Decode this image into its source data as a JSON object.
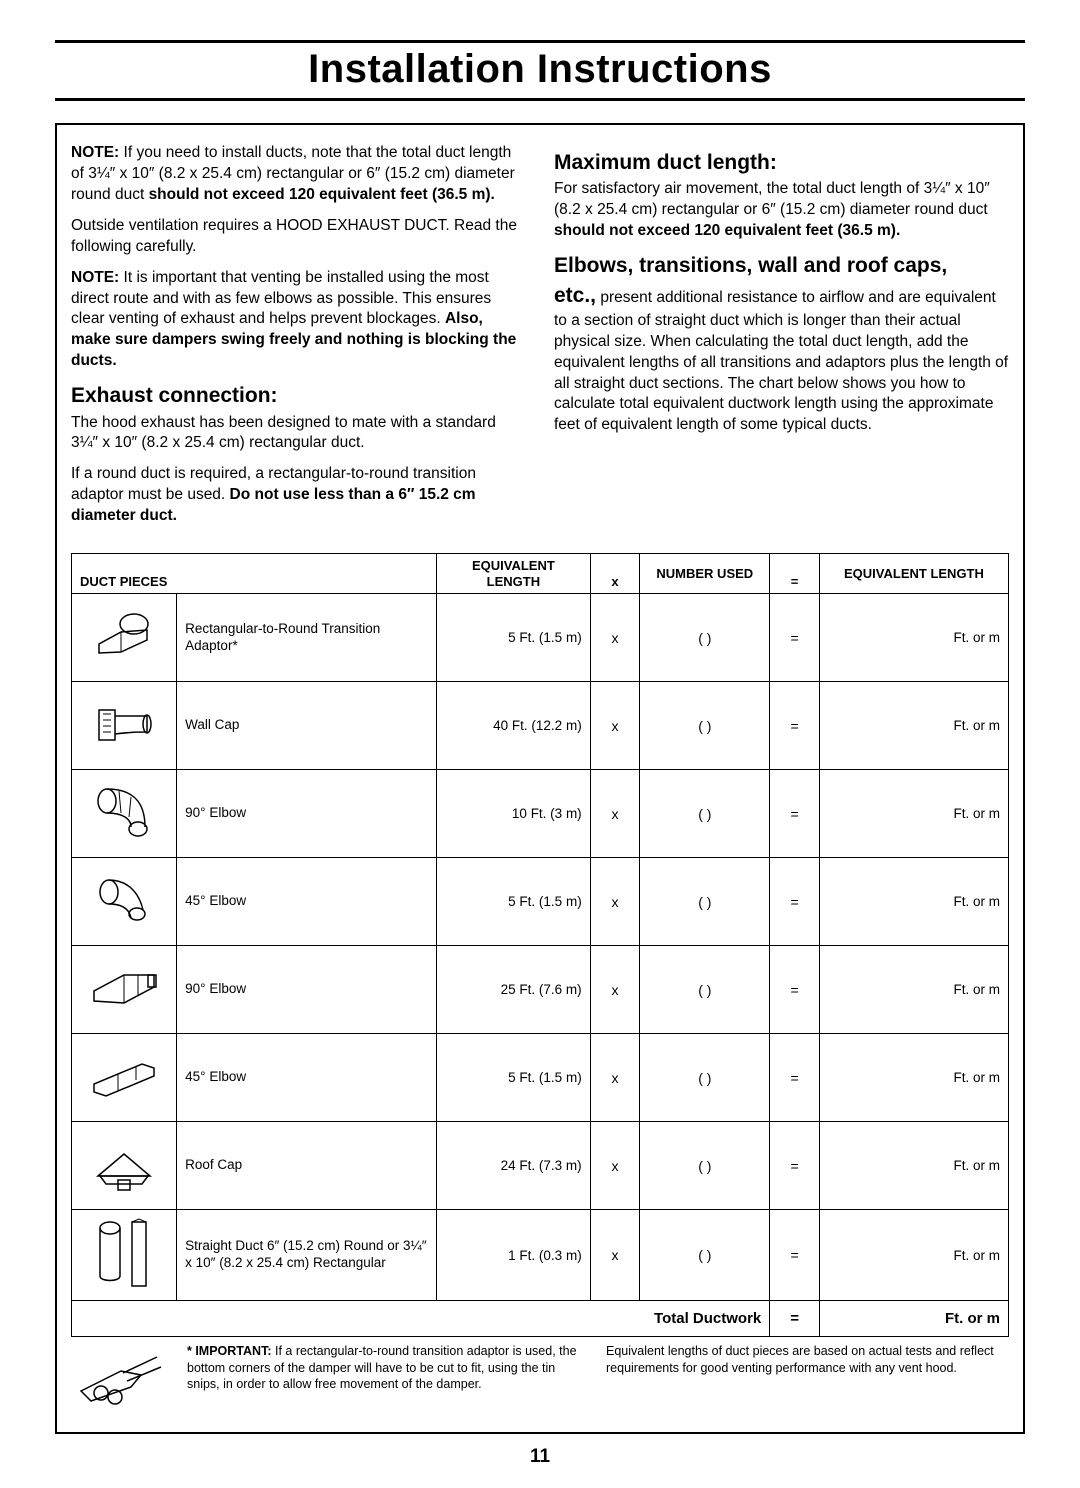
{
  "title": "Installation Instructions",
  "page_number": "11",
  "left_column": {
    "note1_label": "NOTE:",
    "note1_text": " If you need to install ducts, note that the total duct length of 3¼″ x 10″ (8.2 x 25.4 cm) rectangular or 6″ (15.2 cm) diameter round duct ",
    "note1_bold": "should not exceed 120 equivalent feet (36.5 m).",
    "para2": "Outside ventilation requires a HOOD EXHAUST DUCT. Read the following carefully.",
    "note2_label": "NOTE:",
    "note2_text": " It is important that venting be installed using the most direct route and with as few elbows as possible. This ensures clear venting of exhaust and helps prevent blockages. ",
    "note2_bold": "Also, make sure dampers swing freely and nothing is blocking the ducts.",
    "h_exhaust": "Exhaust connection:",
    "exhaust_p1": "The hood exhaust has been designed to mate with a standard 3¼″ x 10″ (8.2 x 25.4 cm) rectangular duct.",
    "exhaust_p2a": "If a round duct is required, a rectangular-to-round transition adaptor must be used. ",
    "exhaust_p2b": "Do not use less than a 6″ 15.2 cm diameter duct."
  },
  "right_column": {
    "h_max": "Maximum duct length:",
    "max_p1a": "For satisfactory air movement, the total duct length of 3¼″ x 10″ (8.2 x 25.4 cm) rectangular or 6″ (15.2 cm) diameter round duct ",
    "max_p1b": "should not exceed 120 equivalent feet (36.5 m).",
    "h_elbows": "Elbows, transitions, wall and roof caps,",
    "etc_label": "etc.,",
    "elbows_text": " present additional resistance to airflow and are equivalent to a section of straight duct which is longer than their actual physical size. When calculating the total duct length, add the equivalent lengths of all transitions and adaptors plus the length of all straight duct sections. The chart below shows you how to calculate total equivalent ductwork length using the approximate feet of equivalent length of some typical ducts."
  },
  "table": {
    "headers": {
      "duct_pieces": "DUCT PIECES",
      "eq_len": "EQUIVALENT LENGTH",
      "x": "x",
      "num_used": "NUMBER USED",
      "eq": "=",
      "eq_len2": "EQUIVALENT LENGTH"
    },
    "rows": [
      {
        "name": "Rectangular-to-Round Transition Adaptor*",
        "eq": "5 Ft. (1.5 m)"
      },
      {
        "name": "Wall Cap",
        "eq": "40 Ft. (12.2 m)"
      },
      {
        "name": "90° Elbow",
        "eq": "10 Ft. (3 m)"
      },
      {
        "name": "45° Elbow",
        "eq": "5 Ft. (1.5 m)"
      },
      {
        "name": "90° Elbow",
        "eq": "25 Ft. (7.6 m)"
      },
      {
        "name": "45° Elbow",
        "eq": "5 Ft. (1.5 m)"
      },
      {
        "name": "Roof Cap",
        "eq": "24 Ft. (7.3 m)"
      },
      {
        "name": "Straight Duct 6″ (15.2 cm) Round or 3¼″ x 10″ (8.2 x 25.4 cm) Rectangular",
        "eq": "1 Ft. (0.3 m)"
      }
    ],
    "op_x": "x",
    "paren": "(   )",
    "op_eq": "=",
    "result_unit": "Ft. or m",
    "total_label": "Total Ductwork",
    "total_eq": "=",
    "total_unit": "Ft. or m"
  },
  "footnotes": {
    "important_label": "* IMPORTANT:",
    "important_text": " If a rectangular-to-round transition adaptor is used, the bottom corners of the damper will have to be cut to fit, using the tin snips, in order to allow free movement of the damper.",
    "note2": "Equivalent lengths of duct pieces are based on actual tests and reflect requirements for good venting performance with any vent hood."
  },
  "icons": {
    "svgs": [
      "<svg class='icon-svg' width='70' height='60' viewBox='0 0 70 60'><ellipse cx='45' cy='16' rx='14' ry='10' fill='none' stroke='#000' stroke-width='1.5'/><path d='M10 45 L10 36 L32 24 L58 22 L58 32 L32 44 Z' fill='none' stroke='#000' stroke-width='1.5'/><path d='M32 24 L32 44' stroke='#000' stroke-width='1'/></svg>",
      "<svg class='icon-svg' width='70' height='60' viewBox='0 0 70 60'><rect x='10' y='14' width='16' height='30' fill='none' stroke='#000' stroke-width='1.5'/><path d='M26 20 C45 20 45 20 58 20 L58 36 C45 36 45 36 26 38' fill='none' stroke='#000' stroke-width='1.5'/><ellipse cx='58' cy='28' rx='4' ry='9' fill='none' stroke='#000' stroke-width='1.5'/><line x1='14' y1='18' x2='22' y2='18' stroke='#000'/><line x1='14' y1='24' x2='22' y2='24' stroke='#000'/><line x1='14' y1='30' x2='22' y2='30' stroke='#000'/><line x1='14' y1='36' x2='22' y2='36' stroke='#000'/></svg>",
      "<svg class='icon-svg' width='70' height='62' viewBox='0 0 70 62'><ellipse cx='18' cy='18' rx='9' ry='12' fill='none' stroke='#000' stroke-width='1.5'/><path d='M18 6 C45 6 56 20 56 44' fill='none' stroke='#000' stroke-width='1.5'/><path d='M18 30 C34 30 42 36 42 44' fill='none' stroke='#000' stroke-width='1.5'/><ellipse cx='49' cy='46' rx='9' ry='7' fill='none' stroke='#000' stroke-width='1.5'/><path d='M30 8 L32 30 M42 14 L40 34' stroke='#000' stroke-width='1'/></svg>",
      "<svg class='icon-svg' width='70' height='60' viewBox='0 0 70 60'><ellipse cx='20' cy='20' rx='9' ry='12' fill='none' stroke='#000' stroke-width='1.5'/><path d='M20 8 C38 8 50 20 54 38' fill='none' stroke='#000' stroke-width='1.5'/><path d='M20 32 C32 32 40 36 42 46' fill='none' stroke='#000' stroke-width='1.5'/><ellipse cx='48' cy='42' rx='8' ry='6' fill='none' stroke='#000' stroke-width='1.5'/></svg>",
      "<svg class='icon-svg' width='72' height='58' viewBox='0 0 72 58'><path d='M6 40 L6 30 L36 14 L66 14 L66 26 L36 42 Z' fill='none' stroke='#000' stroke-width='1.5'/><path d='M36 14 L36 42 M50 14 L50 34' stroke='#000' stroke-width='1'/><rect x='60' y='14' width='8' height='12' fill='none' stroke='#000' stroke-width='1.5'/></svg>",
      "<svg class='icon-svg' width='72' height='55' viewBox='0 0 72 55'><path d='M6 42 L6 34 L54 14 L66 18 L66 26 L18 46 Z' fill='none' stroke='#000' stroke-width='1.5'/><path d='M30 24 L30 40 M48 17 L48 30' stroke='#000' stroke-width='1'/></svg>",
      "<svg class='icon-svg' width='72' height='60' viewBox='0 0 72 60'><path d='M10 40 L36 18 L62 40 Z' fill='none' stroke='#000' stroke-width='1.5'/><path d='M12 40 L60 40 L54 48 L18 48 Z' fill='none' stroke='#000' stroke-width='1.5'/><rect x='30' y='44' width='12' height='10' fill='none' stroke='#000' stroke-width='1.5'/></svg>",
      "<svg class='icon-svg' width='72' height='78' viewBox='0 0 72 78'><ellipse cx='22' cy='12' rx='10' ry='6' fill='none' stroke='#000' stroke-width='1.5'/><path d='M12 12 L12 60 C12 66 32 66 32 60 L32 12' fill='none' stroke='#000' stroke-width='1.5'/><rect x='44' y='6' width='14' height='64' fill='none' stroke='#000' stroke-width='1.5'/><path d='M44 6 L51 3 L58 6' fill='none' stroke='#000' stroke-width='1'/></svg>"
    ],
    "snips": "<svg width='96' height='70' viewBox='0 0 96 70'><path d='M10 48 L50 28 L70 32 L60 44 L20 58 Z' fill='none' stroke='#000' stroke-width='1.5'/><circle cx='30' cy='50' r='7' fill='none' stroke='#000' stroke-width='1.5'/><circle cx='44' cy='54' r='7' fill='none' stroke='#000' stroke-width='1.5'/><path d='M52 30 L86 14 M56 38 L90 24' stroke='#000' stroke-width='1.5'/></svg>"
  }
}
